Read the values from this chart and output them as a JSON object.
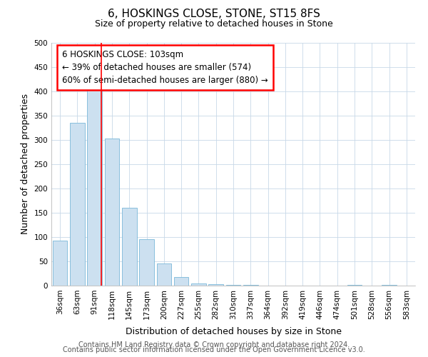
{
  "title": "6, HOSKINGS CLOSE, STONE, ST15 8FS",
  "subtitle": "Size of property relative to detached houses in Stone",
  "xlabel": "Distribution of detached houses by size in Stone",
  "ylabel": "Number of detached properties",
  "bar_color": "#cce0f0",
  "bar_edge_color": "#7ab8d9",
  "categories": [
    "36sqm",
    "63sqm",
    "91sqm",
    "118sqm",
    "145sqm",
    "173sqm",
    "200sqm",
    "227sqm",
    "255sqm",
    "282sqm",
    "310sqm",
    "337sqm",
    "364sqm",
    "392sqm",
    "419sqm",
    "446sqm",
    "474sqm",
    "501sqm",
    "528sqm",
    "556sqm",
    "583sqm"
  ],
  "values": [
    93,
    335,
    408,
    303,
    160,
    95,
    45,
    18,
    5,
    3,
    2,
    1,
    0,
    0,
    0,
    0,
    0,
    2,
    0,
    2,
    0
  ],
  "ylim": [
    0,
    500
  ],
  "yticks": [
    0,
    50,
    100,
    150,
    200,
    250,
    300,
    350,
    400,
    450,
    500
  ],
  "red_line_x": 2.37,
  "annotation_line1": "6 HOSKINGS CLOSE: 103sqm",
  "annotation_line2": "← 39% of detached houses are smaller (574)",
  "annotation_line3": "60% of semi-detached houses are larger (880) →",
  "footer_line1": "Contains HM Land Registry data © Crown copyright and database right 2024.",
  "footer_line2": "Contains public sector information licensed under the Open Government Licence v3.0.",
  "background_color": "#ffffff",
  "grid_color": "#c8d8e8",
  "title_fontsize": 11,
  "subtitle_fontsize": 9,
  "axis_label_fontsize": 9,
  "tick_fontsize": 7.5,
  "footer_fontsize": 7
}
